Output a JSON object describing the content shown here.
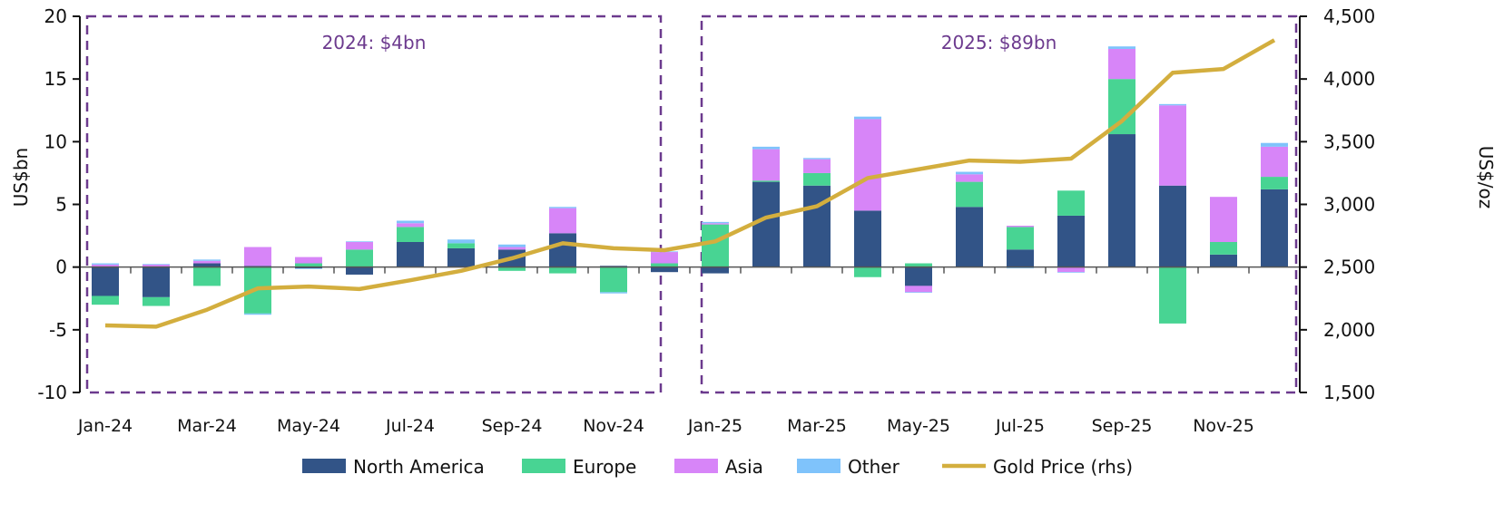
{
  "chart_data": {
    "type": "bar",
    "stacked": true,
    "categories": [
      "Jan-24",
      "Feb-24",
      "Mar-24",
      "Apr-24",
      "May-24",
      "Jun-24",
      "Jul-24",
      "Aug-24",
      "Sep-24",
      "Oct-24",
      "Nov-24",
      "Dec-24",
      "Jan-25",
      "Feb-25",
      "Mar-25",
      "Apr-25",
      "May-25",
      "Jun-25",
      "Jul-25",
      "Aug-25",
      "Sep-25",
      "Oct-25",
      "Nov-25",
      "Dec-25"
    ],
    "xtick_labels": [
      "Jan-24",
      "Mar-24",
      "May-24",
      "Jul-24",
      "Sep-24",
      "Nov-24",
      "Jan-25",
      "Mar-25",
      "May-25",
      "Jul-25",
      "Sep-25",
      "Nov-25"
    ],
    "ylabel": "US$bn",
    "ylabel_right": "US$/oz",
    "ylim": [
      -10,
      20
    ],
    "yticks": [
      -10,
      -5,
      0,
      5,
      10,
      15,
      20
    ],
    "ylim_right": [
      1500,
      4500
    ],
    "yticks_right": [
      "1,500",
      "2,000",
      "2,500",
      "3,000",
      "3,500",
      "4,000",
      "4,500"
    ],
    "series": [
      {
        "name": "North America",
        "color": "#325487",
        "values": [
          -2.3,
          -2.4,
          0.3,
          0.1,
          -0.1,
          -0.6,
          2.0,
          1.5,
          1.4,
          2.7,
          0.1,
          -0.4,
          -0.5,
          6.8,
          6.5,
          4.5,
          -1.5,
          4.8,
          1.4,
          4.1,
          10.6,
          6.5,
          1.0,
          6.2
        ]
      },
      {
        "name": "Europe",
        "color": "#48d493",
        "values": [
          -0.7,
          -0.7,
          -1.5,
          -3.7,
          0.3,
          1.4,
          1.2,
          0.4,
          -0.3,
          -0.5,
          -2.0,
          0.3,
          3.4,
          0.1,
          1.0,
          -0.8,
          0.3,
          2.0,
          1.8,
          2.0,
          4.4,
          -4.5,
          1.0,
          1.0
        ]
      },
      {
        "name": "Asia",
        "color": "#d785f8",
        "values": [
          0.2,
          0.2,
          0.2,
          1.5,
          0.5,
          0.6,
          0.3,
          0.0,
          0.2,
          2.0,
          0.0,
          0.9,
          0.1,
          2.5,
          1.1,
          7.3,
          -0.5,
          0.6,
          0.1,
          -0.4,
          2.4,
          6.4,
          3.6,
          2.4
        ]
      },
      {
        "name": "Other",
        "color": "#7fc3fb",
        "values": [
          0.1,
          0.05,
          0.1,
          -0.1,
          -0.05,
          0.05,
          0.2,
          0.3,
          0.2,
          0.1,
          -0.1,
          0.05,
          0.1,
          0.2,
          0.1,
          0.2,
          -0.05,
          0.2,
          -0.1,
          -0.05,
          0.2,
          0.1,
          0.0,
          0.3
        ]
      },
      {
        "name": "Gold Price (rhs)",
        "type": "line",
        "axis": "right",
        "color": "#d3ae3e",
        "values": [
          2035,
          2025,
          2160,
          2330,
          2345,
          2325,
          2395,
          2470,
          2570,
          2690,
          2650,
          2635,
          2705,
          2895,
          2985,
          3210,
          3280,
          3350,
          3340,
          3365,
          3665,
          4050,
          4080,
          4310
        ]
      }
    ],
    "annotations": [
      {
        "text": "2024: $4bn",
        "span": [
          "Jan-24",
          "Dec-24"
        ]
      },
      {
        "text": "2025: $89bn",
        "span": [
          "Jan-25",
          "Dec-25"
        ]
      }
    ],
    "annotation_color": "#6c3a8e",
    "legend_placement": "bottom",
    "grid": false
  }
}
